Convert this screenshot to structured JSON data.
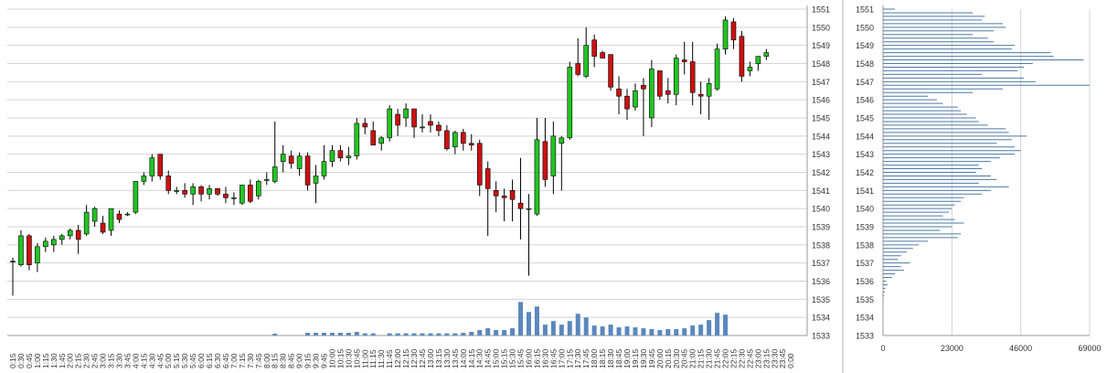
{
  "chart_data": [
    {
      "type": "candlestick",
      "ylim": [
        1533,
        1551
      ],
      "y_ticks": [
        1533,
        1534,
        1535,
        1536,
        1537,
        1538,
        1539,
        1540,
        1541,
        1542,
        1543,
        1544,
        1545,
        1546,
        1547,
        1548,
        1549,
        1550,
        1551
      ],
      "x_tick_labels": [
        "0:15",
        "0:30",
        "0:45",
        "1:00",
        "1:15",
        "1:30",
        "1:45",
        "2:00",
        "2:15",
        "2:30",
        "2:45",
        "3:00",
        "3:15",
        "3:30",
        "3:45",
        "4:00",
        "4:15",
        "4:30",
        "4:45",
        "5:00",
        "5:15",
        "5:30",
        "5:45",
        "6:00",
        "6:15",
        "6:30",
        "6:45",
        "7:00",
        "7:15",
        "7:30",
        "7:45",
        "8:00",
        "8:15",
        "8:30",
        "8:45",
        "9:00",
        "9:15",
        "9:30",
        "9:45",
        "10:00",
        "10:15",
        "10:30",
        "10:45",
        "11:00",
        "11:15",
        "11:30",
        "11:45",
        "12:00",
        "12:15",
        "12:30",
        "12:45",
        "13:00",
        "13:15",
        "13:30",
        "13:45",
        "14:00",
        "14:15",
        "14:30",
        "14:45",
        "15:00",
        "15:15",
        "15:30",
        "15:45",
        "16:00",
        "16:15",
        "16:30",
        "16:45",
        "17:00",
        "17:15",
        "17:30",
        "17:45",
        "18:00",
        "18:15",
        "18:30",
        "18:45",
        "19:00",
        "19:15",
        "19:30",
        "19:45",
        "20:00",
        "20:15",
        "20:30",
        "20:45",
        "21:00",
        "21:15",
        "21:30",
        "21:45",
        "22:00",
        "22:15",
        "22:30",
        "22:45",
        "23:00",
        "23:15",
        "23:30",
        "23:45",
        "0:00"
      ],
      "candles": [
        {
          "o": 1537.1,
          "h": 1537.3,
          "l": 1535.2,
          "c": 1537.1
        },
        {
          "o": 1536.9,
          "h": 1538.8,
          "l": 1536.8,
          "c": 1538.5
        },
        {
          "o": 1538.5,
          "h": 1538.6,
          "l": 1536.6,
          "c": 1536.9
        },
        {
          "o": 1537.0,
          "h": 1538.1,
          "l": 1536.5,
          "c": 1537.9
        },
        {
          "o": 1537.9,
          "h": 1538.4,
          "l": 1537.6,
          "c": 1538.2
        },
        {
          "o": 1538.0,
          "h": 1538.5,
          "l": 1537.6,
          "c": 1538.3
        },
        {
          "o": 1538.3,
          "h": 1538.6,
          "l": 1538.0,
          "c": 1538.5
        },
        {
          "o": 1538.5,
          "h": 1538.9,
          "l": 1538.3,
          "c": 1538.8
        },
        {
          "o": 1538.8,
          "h": 1539.1,
          "l": 1537.5,
          "c": 1538.3
        },
        {
          "o": 1538.6,
          "h": 1540.2,
          "l": 1538.5,
          "c": 1539.8
        },
        {
          "o": 1539.3,
          "h": 1540.1,
          "l": 1539.0,
          "c": 1540.0
        },
        {
          "o": 1539.2,
          "h": 1539.6,
          "l": 1538.6,
          "c": 1538.7
        },
        {
          "o": 1538.8,
          "h": 1540.0,
          "l": 1538.5,
          "c": 1540.0
        },
        {
          "o": 1539.7,
          "h": 1539.9,
          "l": 1539.2,
          "c": 1539.4
        },
        {
          "o": 1539.7,
          "h": 1539.8,
          "l": 1539.6,
          "c": 1539.7
        },
        {
          "o": 1539.8,
          "h": 1541.5,
          "l": 1539.7,
          "c": 1541.5
        },
        {
          "o": 1541.5,
          "h": 1542.0,
          "l": 1541.3,
          "c": 1541.8
        },
        {
          "o": 1541.8,
          "h": 1543.0,
          "l": 1541.5,
          "c": 1542.8
        },
        {
          "o": 1543.0,
          "h": 1543.0,
          "l": 1541.6,
          "c": 1541.8
        },
        {
          "o": 1541.8,
          "h": 1542.1,
          "l": 1540.8,
          "c": 1541.0
        },
        {
          "o": 1541.0,
          "h": 1541.2,
          "l": 1540.8,
          "c": 1541.0
        },
        {
          "o": 1541.0,
          "h": 1541.4,
          "l": 1540.6,
          "c": 1540.8
        },
        {
          "o": 1540.8,
          "h": 1541.4,
          "l": 1540.2,
          "c": 1541.2
        },
        {
          "o": 1541.2,
          "h": 1541.3,
          "l": 1540.4,
          "c": 1540.8
        },
        {
          "o": 1540.8,
          "h": 1541.3,
          "l": 1540.5,
          "c": 1541.1
        },
        {
          "o": 1541.1,
          "h": 1541.1,
          "l": 1540.7,
          "c": 1540.8
        },
        {
          "o": 1540.8,
          "h": 1541.2,
          "l": 1540.3,
          "c": 1540.6
        },
        {
          "o": 1540.6,
          "h": 1540.9,
          "l": 1540.2,
          "c": 1540.6
        },
        {
          "o": 1540.3,
          "h": 1541.3,
          "l": 1540.2,
          "c": 1541.3
        },
        {
          "o": 1541.3,
          "h": 1541.6,
          "l": 1540.3,
          "c": 1540.4
        },
        {
          "o": 1540.7,
          "h": 1541.6,
          "l": 1540.5,
          "c": 1541.5
        },
        {
          "o": 1541.6,
          "h": 1542.0,
          "l": 1541.3,
          "c": 1541.6
        },
        {
          "o": 1541.5,
          "h": 1544.8,
          "l": 1541.4,
          "c": 1542.3
        },
        {
          "o": 1542.6,
          "h": 1543.5,
          "l": 1542.0,
          "c": 1543.0
        },
        {
          "o": 1542.9,
          "h": 1543.2,
          "l": 1542.2,
          "c": 1542.5
        },
        {
          "o": 1542.2,
          "h": 1543.1,
          "l": 1541.8,
          "c": 1542.9
        },
        {
          "o": 1542.9,
          "h": 1543.1,
          "l": 1541.0,
          "c": 1541.3
        },
        {
          "o": 1541.4,
          "h": 1542.4,
          "l": 1540.3,
          "c": 1541.8
        },
        {
          "o": 1541.8,
          "h": 1543.5,
          "l": 1541.6,
          "c": 1542.6
        },
        {
          "o": 1542.6,
          "h": 1543.5,
          "l": 1542.3,
          "c": 1543.2
        },
        {
          "o": 1543.2,
          "h": 1543.5,
          "l": 1542.6,
          "c": 1542.8
        },
        {
          "o": 1542.8,
          "h": 1543.4,
          "l": 1542.4,
          "c": 1542.9
        },
        {
          "o": 1542.9,
          "h": 1545.0,
          "l": 1542.7,
          "c": 1544.7
        },
        {
          "o": 1544.7,
          "h": 1545.0,
          "l": 1544.1,
          "c": 1544.5
        },
        {
          "o": 1544.3,
          "h": 1544.8,
          "l": 1543.5,
          "c": 1543.5
        },
        {
          "o": 1543.6,
          "h": 1544.0,
          "l": 1543.2,
          "c": 1543.9
        },
        {
          "o": 1543.9,
          "h": 1545.7,
          "l": 1543.7,
          "c": 1545.5
        },
        {
          "o": 1545.2,
          "h": 1545.5,
          "l": 1544.0,
          "c": 1544.6
        },
        {
          "o": 1545.0,
          "h": 1545.8,
          "l": 1544.5,
          "c": 1545.5
        },
        {
          "o": 1545.5,
          "h": 1545.5,
          "l": 1543.9,
          "c": 1544.5
        },
        {
          "o": 1544.5,
          "h": 1545.2,
          "l": 1544.2,
          "c": 1544.5
        },
        {
          "o": 1544.8,
          "h": 1545.2,
          "l": 1544.2,
          "c": 1544.6
        },
        {
          "o": 1544.6,
          "h": 1544.8,
          "l": 1544.0,
          "c": 1544.3
        },
        {
          "o": 1544.3,
          "h": 1544.6,
          "l": 1543.2,
          "c": 1543.3
        },
        {
          "o": 1543.4,
          "h": 1544.3,
          "l": 1543.0,
          "c": 1544.2
        },
        {
          "o": 1544.2,
          "h": 1544.4,
          "l": 1543.2,
          "c": 1543.6
        },
        {
          "o": 1543.6,
          "h": 1544.1,
          "l": 1543.2,
          "c": 1543.5
        },
        {
          "o": 1543.6,
          "h": 1543.8,
          "l": 1540.7,
          "c": 1541.3
        },
        {
          "o": 1542.2,
          "h": 1542.6,
          "l": 1538.5,
          "c": 1541.1
        },
        {
          "o": 1541.0,
          "h": 1541.5,
          "l": 1539.8,
          "c": 1540.7
        },
        {
          "o": 1540.7,
          "h": 1541.1,
          "l": 1539.3,
          "c": 1540.6
        },
        {
          "o": 1541.0,
          "h": 1541.6,
          "l": 1539.3,
          "c": 1540.5
        },
        {
          "o": 1540.3,
          "h": 1542.8,
          "l": 1538.3,
          "c": 1540.0
        },
        {
          "o": 1540.0,
          "h": 1540.8,
          "l": 1536.3,
          "c": 1540.0
        },
        {
          "o": 1539.7,
          "h": 1545.0,
          "l": 1539.6,
          "c": 1543.8
        },
        {
          "o": 1543.7,
          "h": 1545.0,
          "l": 1541.2,
          "c": 1541.6
        },
        {
          "o": 1541.8,
          "h": 1544.8,
          "l": 1540.8,
          "c": 1544.0
        },
        {
          "o": 1543.6,
          "h": 1544.0,
          "l": 1541.0,
          "c": 1543.9
        },
        {
          "o": 1543.9,
          "h": 1548.1,
          "l": 1543.8,
          "c": 1547.8
        },
        {
          "o": 1548.0,
          "h": 1549.4,
          "l": 1547.3,
          "c": 1547.4
        },
        {
          "o": 1547.3,
          "h": 1550.0,
          "l": 1547.2,
          "c": 1549.0
        },
        {
          "o": 1549.3,
          "h": 1549.6,
          "l": 1547.8,
          "c": 1548.4
        },
        {
          "o": 1548.6,
          "h": 1548.7,
          "l": 1548.3,
          "c": 1548.3
        },
        {
          "o": 1548.5,
          "h": 1548.5,
          "l": 1546.5,
          "c": 1546.7
        },
        {
          "o": 1546.6,
          "h": 1547.3,
          "l": 1545.2,
          "c": 1546.2
        },
        {
          "o": 1546.2,
          "h": 1546.6,
          "l": 1544.9,
          "c": 1545.5
        },
        {
          "o": 1545.6,
          "h": 1546.9,
          "l": 1545.4,
          "c": 1546.5
        },
        {
          "o": 1546.8,
          "h": 1547.2,
          "l": 1544.0,
          "c": 1546.6
        },
        {
          "o": 1545.0,
          "h": 1548.2,
          "l": 1544.5,
          "c": 1547.7
        },
        {
          "o": 1547.6,
          "h": 1547.6,
          "l": 1546.0,
          "c": 1546.2
        },
        {
          "o": 1546.5,
          "h": 1547.2,
          "l": 1545.8,
          "c": 1546.3
        },
        {
          "o": 1546.3,
          "h": 1548.5,
          "l": 1545.7,
          "c": 1548.3
        },
        {
          "o": 1548.2,
          "h": 1549.2,
          "l": 1547.4,
          "c": 1548.1
        },
        {
          "o": 1548.1,
          "h": 1549.2,
          "l": 1545.7,
          "c": 1546.4
        },
        {
          "o": 1546.3,
          "h": 1547.0,
          "l": 1545.2,
          "c": 1546.2
        },
        {
          "o": 1546.2,
          "h": 1547.2,
          "l": 1544.9,
          "c": 1546.9
        },
        {
          "o": 1546.6,
          "h": 1549.1,
          "l": 1546.5,
          "c": 1548.8
        },
        {
          "o": 1548.8,
          "h": 1550.6,
          "l": 1548.5,
          "c": 1550.4
        },
        {
          "o": 1550.3,
          "h": 1550.5,
          "l": 1548.8,
          "c": 1549.3
        },
        {
          "o": 1549.5,
          "h": 1549.8,
          "l": 1547.0,
          "c": 1547.3
        },
        {
          "o": 1547.6,
          "h": 1548.1,
          "l": 1547.3,
          "c": 1547.8
        },
        {
          "o": 1548.0,
          "h": 1548.4,
          "l": 1547.6,
          "c": 1548.4
        },
        {
          "o": 1548.4,
          "h": 1548.8,
          "l": 1548.2,
          "c": 1548.6
        }
      ],
      "volume": [
        0,
        0,
        0,
        0,
        0,
        0,
        0,
        0,
        0,
        0,
        0,
        0,
        0,
        0,
        0,
        0,
        0,
        0,
        0,
        0,
        0,
        0,
        0,
        0,
        0,
        0,
        0,
        0,
        0,
        0,
        0,
        0,
        0.1,
        0,
        0,
        0,
        0.15,
        0.15,
        0.15,
        0.15,
        0.15,
        0.15,
        0.2,
        0.12,
        0.12,
        0,
        0.12,
        0.12,
        0.12,
        0.12,
        0.12,
        0.12,
        0.12,
        0.12,
        0.12,
        0.15,
        0.2,
        0.3,
        0.4,
        0.3,
        0.3,
        0.4,
        1.85,
        1.3,
        1.6,
        0.6,
        0.8,
        0.6,
        0.8,
        1.2,
        1.0,
        0.55,
        0.5,
        0.6,
        0.45,
        0.5,
        0.45,
        0.4,
        0.35,
        0.3,
        0.35,
        0.35,
        0.4,
        0.55,
        0.6,
        0.85,
        1.25,
        1.15,
        0,
        0,
        0,
        0,
        0,
        0
      ]
    },
    {
      "type": "bar",
      "orientation": "horizontal",
      "xlim": [
        0,
        69000
      ],
      "x_ticks": [
        0,
        23000,
        46000,
        69000
      ],
      "price_ticks": [
        1533,
        1534,
        1535,
        1536,
        1537,
        1538,
        1539,
        1540,
        1541,
        1542,
        1543,
        1544,
        1545,
        1546,
        1547,
        1548,
        1549,
        1550,
        1551
      ],
      "levels": [
        1551,
        1550.8,
        1550.6,
        1550.4,
        1550.2,
        1550,
        1549.8,
        1549.6,
        1549.4,
        1549.2,
        1549,
        1548.8,
        1548.6,
        1548.4,
        1548.2,
        1548,
        1547.8,
        1547.6,
        1547.4,
        1547.2,
        1547,
        1546.8,
        1546.6,
        1546.4,
        1546.2,
        1546,
        1545.8,
        1545.6,
        1545.4,
        1545.2,
        1545,
        1544.8,
        1544.6,
        1544.4,
        1544.2,
        1544,
        1543.8,
        1543.6,
        1543.4,
        1543.2,
        1543,
        1542.8,
        1542.6,
        1542.4,
        1542.2,
        1542,
        1541.8,
        1541.6,
        1541.4,
        1541.2,
        1541,
        1540.8,
        1540.6,
        1540.4,
        1540.2,
        1540,
        1539.8,
        1539.6,
        1539.4,
        1539.2,
        1539,
        1538.8,
        1538.6,
        1538.4,
        1538.2,
        1538,
        1537.8,
        1537.6,
        1537.4,
        1537.2,
        1537,
        1536.8,
        1536.6,
        1536.4,
        1536.2,
        1536,
        1535.8,
        1535.6,
        1535.4,
        1535.2,
        1535
      ],
      "values": [
        4000,
        30000,
        34000,
        33000,
        40000,
        41000,
        37000,
        30000,
        35000,
        37000,
        44000,
        43000,
        56000,
        57000,
        67000,
        50000,
        47000,
        45000,
        33000,
        47000,
        51000,
        69000,
        40000,
        30000,
        15000,
        18000,
        20000,
        25000,
        26000,
        28000,
        31000,
        32000,
        35000,
        41000,
        42000,
        48000,
        43000,
        38000,
        44000,
        46000,
        44000,
        39000,
        36000,
        32000,
        33000,
        31000,
        36000,
        38000,
        32000,
        42000,
        36000,
        33000,
        27000,
        26000,
        24000,
        23000,
        22000,
        20000,
        24000,
        27000,
        23000,
        19000,
        26000,
        25000,
        15000,
        12000,
        10000,
        8000,
        6000,
        5000,
        9000,
        6000,
        7000,
        4000,
        3000,
        1000,
        1500,
        800,
        500,
        300,
        200
      ]
    }
  ]
}
